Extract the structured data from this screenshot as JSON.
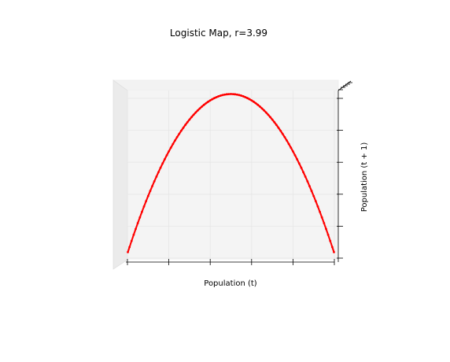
{
  "chart_data": {
    "type": "scatter",
    "title": "Logistic Map, r=3.99",
    "xlabel": "Population (t)",
    "ylabel": "Population (t + 1)",
    "xlim": [
      0,
      1
    ],
    "ylim": [
      0,
      1
    ],
    "grid": true,
    "series": [
      {
        "color": "#ff0000",
        "r": 3.99,
        "x": [
          0.002,
          0.01,
          0.02,
          0.03,
          0.04,
          0.05,
          0.06,
          0.07,
          0.08,
          0.09,
          0.1,
          0.11,
          0.12,
          0.13,
          0.14,
          0.15,
          0.16,
          0.17,
          0.18,
          0.19,
          0.2,
          0.21,
          0.22,
          0.23,
          0.24,
          0.25,
          0.26,
          0.27,
          0.28,
          0.29,
          0.3,
          0.31,
          0.32,
          0.33,
          0.34,
          0.35,
          0.36,
          0.37,
          0.38,
          0.39,
          0.4,
          0.41,
          0.42,
          0.43,
          0.44,
          0.45,
          0.46,
          0.47,
          0.48,
          0.49,
          0.5,
          0.51,
          0.52,
          0.53,
          0.54,
          0.55,
          0.56,
          0.57,
          0.58,
          0.59,
          0.6,
          0.61,
          0.62,
          0.63,
          0.64,
          0.65,
          0.66,
          0.67,
          0.68,
          0.69,
          0.7,
          0.71,
          0.72,
          0.73,
          0.74,
          0.75,
          0.76,
          0.77,
          0.78,
          0.79,
          0.8,
          0.81,
          0.82,
          0.83,
          0.84,
          0.85,
          0.86,
          0.87,
          0.88,
          0.89,
          0.9,
          0.91,
          0.92,
          0.93,
          0.94,
          0.95,
          0.96,
          0.97,
          0.98,
          0.99,
          0.998
        ]
      }
    ]
  }
}
